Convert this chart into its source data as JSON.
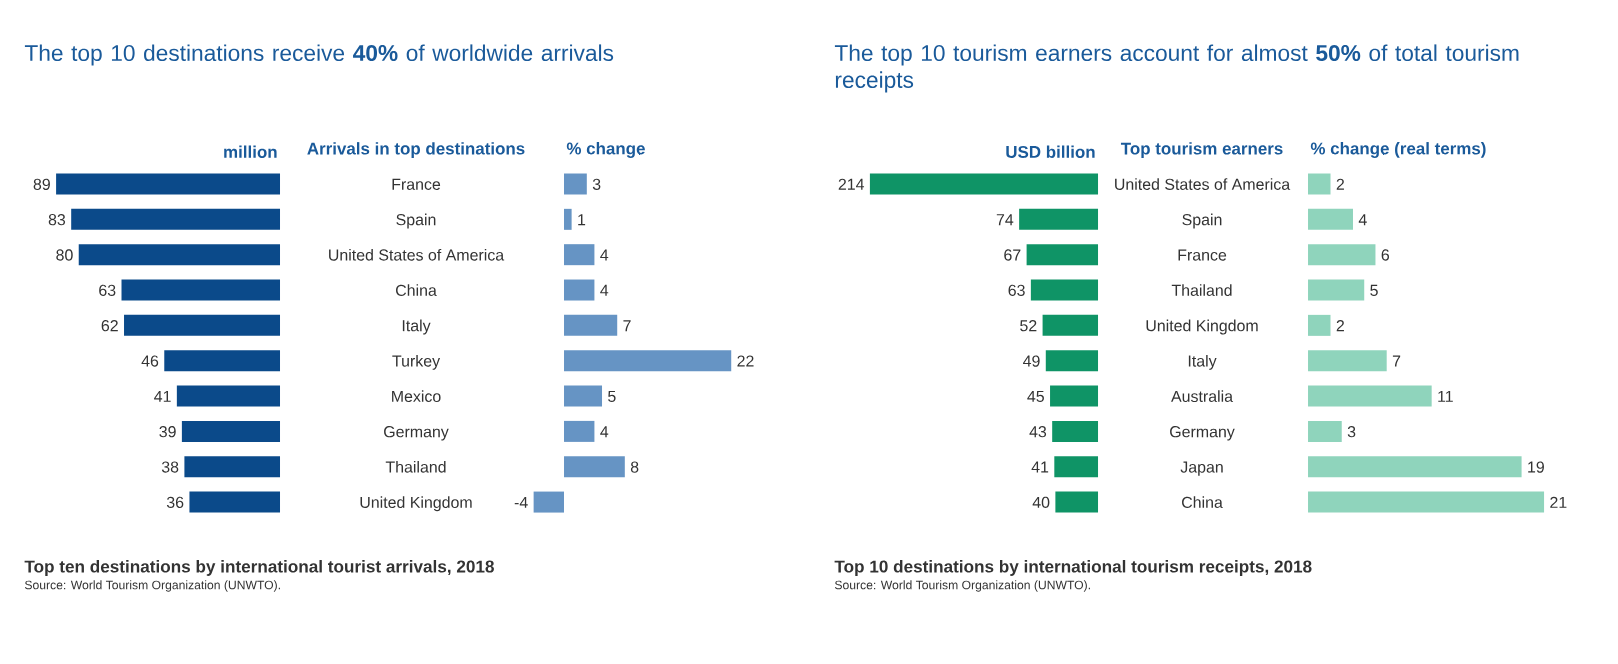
{
  "chart_data": [
    {
      "type": "bar",
      "orientation": "horizontal",
      "title": "The top 10 destinations receive **40%** of worldwide arrivals",
      "xlabel": "million",
      "ylabel": "Arrivals in top destinations",
      "categories": [
        "France",
        "Spain",
        "United States of America",
        "China",
        "Italy",
        "Turkey",
        "Mexico",
        "Germany",
        "Thailand",
        "United Kingdom"
      ],
      "values": [
        89,
        83,
        80,
        63,
        62,
        46,
        41,
        39,
        38,
        36
      ],
      "color": "#0b4a8a",
      "data_labels": true,
      "tick_labels": "y",
      "annotations": [
        "Top ten destinations by international tourist arrivals, 2018",
        "Source: World Tourism Organization (UNWTO)."
      ]
    },
    {
      "type": "bar",
      "orientation": "horizontal",
      "xlabel": "% change",
      "categories": [
        null,
        null,
        null,
        null,
        null,
        null,
        null,
        null,
        null,
        null
      ],
      "values": [
        3,
        1,
        4,
        4,
        7,
        22,
        5,
        4,
        8,
        -4
      ],
      "color": "#6694c4",
      "data_labels": true,
      "tick_labels": false
    },
    {
      "type": "bar",
      "orientation": "horizontal",
      "title": "The top 10 tourism earners account for almost **50%** of total tourism receipts",
      "xlabel": "USD billion",
      "ylabel": "Top tourism earners",
      "categories": [
        "United States of America",
        "Spain",
        "France",
        "Thailand",
        "United Kingdom",
        "Italy",
        "Australia",
        "Germany",
        "Japan",
        "China"
      ],
      "values": [
        214,
        74,
        67,
        63,
        52,
        49,
        45,
        43,
        41,
        40
      ],
      "color": "#0f9466",
      "data_labels": true,
      "tick_labels": "y",
      "annotations": [
        "Top 10 destinations by international tourism receipts, 2018",
        "Source: World Tourism Organization (UNWTO)."
      ]
    },
    {
      "type": "bar",
      "orientation": "horizontal",
      "xlabel": "% change (real terms)",
      "categories": [
        null,
        null,
        null,
        null,
        null,
        null,
        null,
        null,
        null,
        null
      ],
      "values": [
        2,
        4,
        6,
        5,
        2,
        7,
        11,
        3,
        19,
        21
      ],
      "color": "#8fd4bc",
      "data_labels": true,
      "tick_labels": false
    }
  ]
}
